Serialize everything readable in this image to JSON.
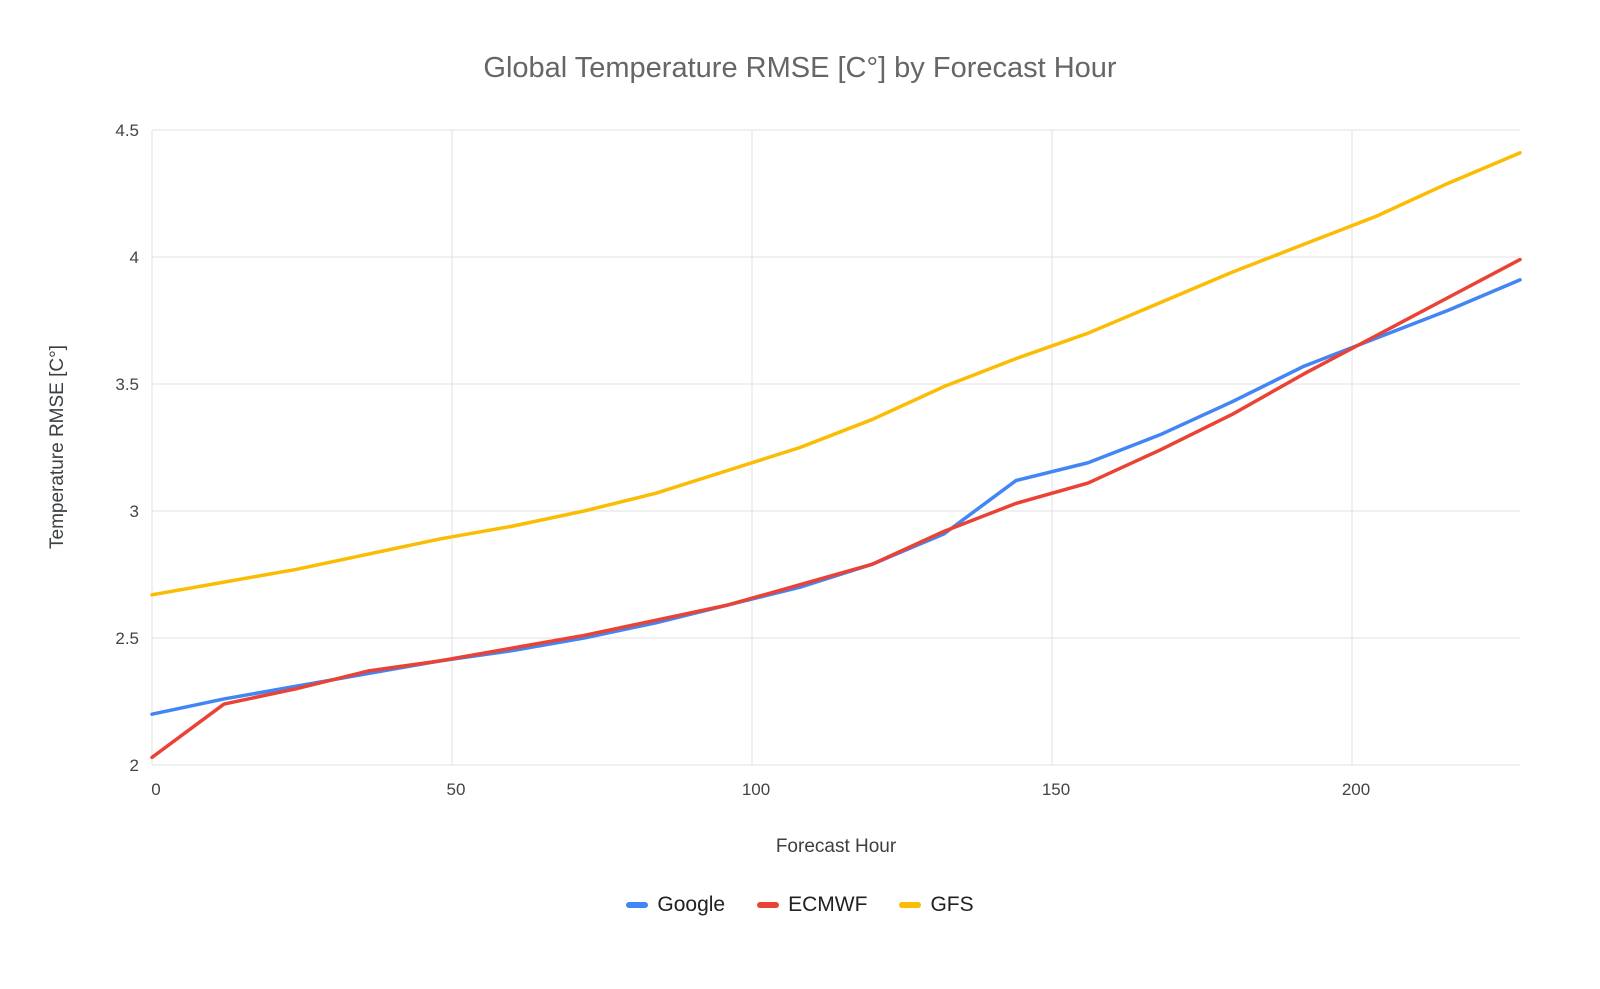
{
  "chart_data": {
    "type": "line",
    "title": "Global Temperature RMSE [C°] by Forecast Hour",
    "xlabel": "Forecast Hour",
    "ylabel": "Temperature RMSE [C°]",
    "xlim": [
      0,
      228
    ],
    "ylim": [
      2,
      4.5
    ],
    "xticks": [
      0,
      50,
      100,
      150,
      200
    ],
    "yticks": [
      2,
      2.5,
      3,
      3.5,
      4,
      4.5
    ],
    "grid": true,
    "legend_position": "bottom",
    "x": [
      0,
      12,
      24,
      36,
      48,
      60,
      72,
      84,
      96,
      108,
      120,
      132,
      144,
      156,
      168,
      180,
      192,
      204,
      216,
      228
    ],
    "series": [
      {
        "name": "Google",
        "color": "#4285F4",
        "values": [
          2.2,
          2.26,
          2.31,
          2.36,
          2.41,
          2.45,
          2.5,
          2.56,
          2.63,
          2.7,
          2.79,
          2.91,
          3.12,
          3.19,
          3.3,
          3.43,
          3.57,
          3.68,
          3.79,
          3.91
        ]
      },
      {
        "name": "ECMWF",
        "color": "#EA4335",
        "values": [
          2.03,
          2.24,
          2.3,
          2.37,
          2.41,
          2.46,
          2.51,
          2.57,
          2.63,
          2.71,
          2.79,
          2.92,
          3.03,
          3.11,
          3.24,
          3.38,
          3.54,
          3.69,
          3.84,
          3.99
        ]
      },
      {
        "name": "GFS",
        "color": "#FBBC04",
        "values": [
          2.67,
          2.72,
          2.77,
          2.83,
          2.89,
          2.94,
          3.0,
          3.07,
          3.16,
          3.25,
          3.36,
          3.49,
          3.6,
          3.7,
          3.82,
          3.94,
          4.05,
          4.16,
          4.29,
          4.41
        ]
      }
    ]
  },
  "colors": {
    "grid": "#e0e0e0",
    "axis_text": "#444444",
    "title_text": "#666666"
  }
}
